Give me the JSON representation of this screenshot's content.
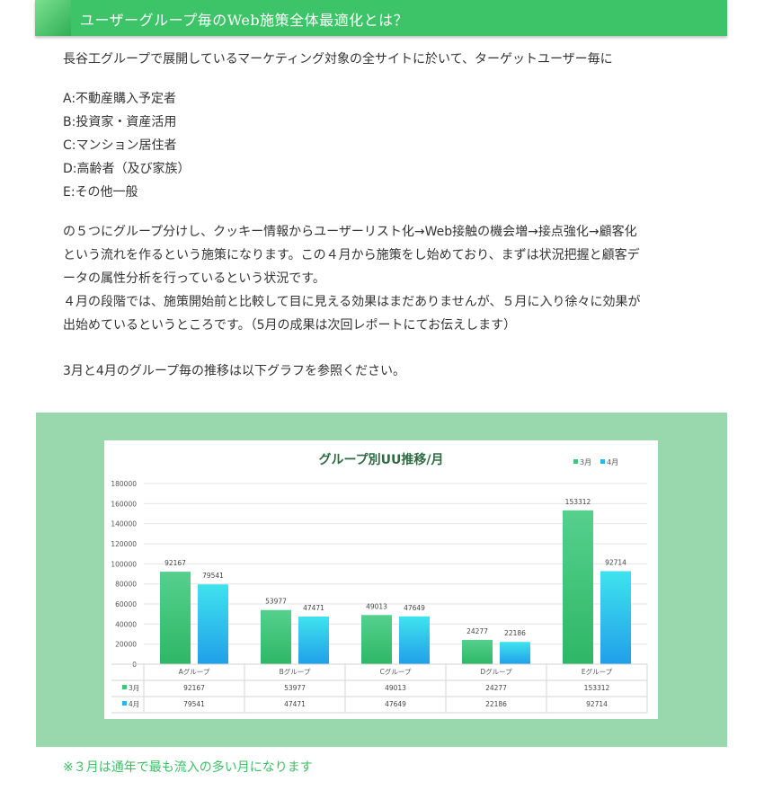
{
  "header": {
    "title": "ユーザーグループ毎のWeb施策全体最適化とは？"
  },
  "intro": "長谷工グループで展開しているマーケティング対象の全サイトに於いて、ターゲットユーザー毎に",
  "groups": [
    "A:不動産購入予定者",
    "B:投資家・資産活用",
    "C:マンション居住者",
    "D:高齢者（及び家族）",
    "E:その他一般"
  ],
  "paragraph": [
    "の５つにグループ分けし、クッキー情報からユーザーリスト化→Web接触の機会増→接点強化→顧客化",
    "という流れを作るという施策になります。この４月から施策をし始めており、まずは状況把握と顧客デ",
    "ータの属性分析を行っているという状況です。",
    "４月の段階では、施策開始前と比較して目に見える効果はまだありませんが、５月に入り徐々に効果が",
    "出始めているというところです。（5月の成果は次回レポートにてお伝えします）"
  ],
  "graph_intro": "3月と4月のグループ毎の推移は以下グラフを参照ください。",
  "note": "※３月は通年で最も流入の多い月になります",
  "colors": {
    "header": "#3dc468",
    "march": "#3cc77a",
    "april": "#29b6f0",
    "panel": "#99d7ad"
  },
  "chart_data": {
    "type": "bar",
    "title": "グループ別UU推移/月",
    "categories": [
      "Aグループ",
      "Bグループ",
      "Cグループ",
      "Dグループ",
      "Eグループ"
    ],
    "series": [
      {
        "name": "3月",
        "values": [
          92167,
          53977,
          49013,
          24277,
          153312
        ]
      },
      {
        "name": "4月",
        "values": [
          79541,
          47471,
          47649,
          22186,
          92714
        ]
      }
    ],
    "yticks": [
      "0",
      "20000",
      "40000",
      "60000",
      "80000",
      "100000",
      "120000",
      "140000",
      "160000",
      "180000"
    ],
    "ylim": [
      0,
      180000
    ],
    "legend_position": "top-right",
    "grid": true,
    "data_table": true
  }
}
